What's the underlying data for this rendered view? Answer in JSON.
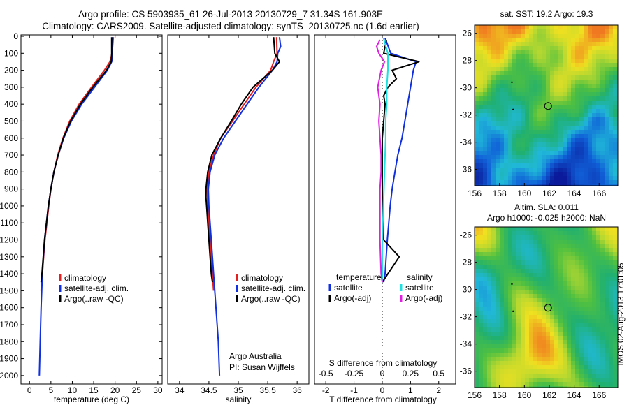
{
  "title_line1": "Argo profile: CS 5903935_61 26-Jul-2013 20130729_7 31.34S 161.903E",
  "title_line2": "Climatology: CARS2009. Satellite-adjusted climatology: synTS_20130725.nc (1.6d earlier)",
  "depth_ticks": [
    "0",
    "100",
    "200",
    "300",
    "400",
    "500",
    "600",
    "700",
    "800",
    "900",
    "1000",
    "1100",
    "1200",
    "1300",
    "1400",
    "1500",
    "1600",
    "1700",
    "1800",
    "1900",
    "2000"
  ],
  "colors": {
    "climatology": "#e32020",
    "satellite": "#1030e0",
    "argo": "#000000",
    "salinity_satellite": "#20e0e0",
    "salinity_argo": "#e020e0"
  },
  "chart_data": [
    {
      "type": "line",
      "panel": "temperature",
      "xlabel": "temperature (deg C)",
      "ylabel": "",
      "xlim": [
        -2,
        31
      ],
      "ylim": [
        2050,
        0
      ],
      "xticks": [
        "0",
        "5",
        "10",
        "15",
        "20",
        "25",
        "30"
      ],
      "legend": [
        "climatology",
        "satellite-adj. clim.",
        "Argo(..raw -QC)"
      ],
      "legend_position": "bottom-center",
      "series": [
        {
          "name": "climatology",
          "depth": [
            5,
            100,
            150,
            200,
            300,
            400,
            500,
            600,
            700,
            800,
            900,
            1000,
            1200,
            1400,
            1500
          ],
          "values": [
            19.6,
            19.3,
            18.8,
            17.5,
            14.5,
            11.6,
            9.4,
            7.8,
            6.6,
            5.7,
            5.0,
            4.5,
            3.6,
            3.0,
            2.7
          ]
        },
        {
          "name": "satellite-adj. clim.",
          "depth": [
            5,
            100,
            150,
            200,
            300,
            400,
            500,
            600,
            700,
            800,
            900,
            1000,
            1200,
            1400,
            1600,
            1800,
            2000
          ],
          "values": [
            19.4,
            19.4,
            19.2,
            18.2,
            15.2,
            12.2,
            9.8,
            8.0,
            6.7,
            5.7,
            5.0,
            4.4,
            3.5,
            3.0,
            2.7,
            2.5,
            2.3
          ]
        },
        {
          "name": "Argo(..raw -QC)",
          "depth": [
            5,
            100,
            150,
            200,
            300,
            400,
            500,
            600,
            700,
            800,
            900,
            1000,
            1200,
            1400,
            1450
          ],
          "values": [
            19.2,
            19.2,
            19.1,
            18.0,
            14.8,
            11.9,
            9.6,
            7.9,
            6.7,
            5.7,
            5.0,
            4.4,
            3.5,
            2.9,
            2.7
          ]
        }
      ]
    },
    {
      "type": "line",
      "panel": "salinity",
      "xlabel": "salinity",
      "xlim": [
        33.8,
        36.2
      ],
      "ylim": [
        2050,
        0
      ],
      "xticks": [
        "34",
        "34.5",
        "35",
        "35.5",
        "36"
      ],
      "legend": [
        "climatology",
        "satellite-adj. clim.",
        "Argo(..raw -QC)"
      ],
      "legend_position": "bottom-right",
      "annotations": [
        "Argo Australia",
        "PI: Susan Wijffels"
      ],
      "series": [
        {
          "name": "climatology",
          "depth": [
            5,
            100,
            150,
            200,
            300,
            400,
            500,
            600,
            700,
            800,
            900,
            1000,
            1200,
            1400,
            1500
          ],
          "values": [
            35.65,
            35.66,
            35.6,
            35.55,
            35.3,
            35.1,
            34.9,
            34.7,
            34.58,
            34.5,
            34.47,
            34.48,
            34.52,
            34.56,
            34.58
          ]
        },
        {
          "name": "satellite-adj. clim.",
          "depth": [
            5,
            60,
            100,
            150,
            200,
            300,
            400,
            500,
            600,
            700,
            800,
            900,
            1000,
            1200,
            1400,
            1600,
            1800,
            2000
          ],
          "values": [
            35.7,
            35.72,
            35.67,
            35.66,
            35.58,
            35.35,
            35.15,
            34.95,
            34.75,
            34.6,
            34.52,
            34.49,
            34.5,
            34.54,
            34.58,
            34.62,
            34.66,
            34.68
          ]
        },
        {
          "name": "Argo(..raw -QC)",
          "depth": [
            5,
            100,
            150,
            200,
            300,
            400,
            500,
            600,
            700,
            800,
            900,
            950,
            1000,
            1200,
            1400,
            1450
          ],
          "values": [
            35.6,
            35.62,
            35.7,
            35.58,
            35.25,
            35.05,
            34.88,
            34.7,
            34.55,
            34.48,
            34.45,
            34.45,
            34.46,
            34.5,
            34.54,
            34.56
          ]
        }
      ]
    },
    {
      "type": "line",
      "panel": "differences",
      "xlabel": "T difference from climatology",
      "xlabel_top": "S difference from climatology",
      "xlim": [
        -2.4,
        2.6
      ],
      "ylim": [
        2050,
        0
      ],
      "xticks": [
        "-2",
        "-1",
        "0",
        "1",
        "2"
      ],
      "xticks_salinity": [
        "-0.5",
        "-0.25",
        "0",
        "0.25",
        "0.5"
      ],
      "legend_titles": [
        "temperature",
        "salinity"
      ],
      "legend": [
        "satellite",
        "Argo(-adj)",
        "satellite",
        "Argo(-adj)"
      ],
      "legend_position": "bottom",
      "series": [
        {
          "name": "satellite",
          "variable": "temperature",
          "depth": [
            10,
            100,
            150,
            200,
            300,
            400,
            500,
            600,
            700,
            800,
            900,
            1000,
            1200,
            1400,
            1450
          ],
          "values": [
            0.1,
            0.3,
            1.2,
            1.1,
            1.0,
            0.9,
            0.8,
            0.7,
            0.55,
            0.45,
            0.35,
            0.28,
            0.18,
            0.1,
            0.05
          ]
        },
        {
          "name": "Argo(-adj)",
          "variable": "temperature",
          "depth": [
            20,
            60,
            100,
            150,
            200,
            250,
            300,
            350,
            400,
            500,
            600,
            700,
            800,
            900,
            1000,
            1200,
            1300,
            1350,
            1400,
            1450
          ],
          "values": [
            0.15,
            0.1,
            0.05,
            1.3,
            0.35,
            0.5,
            0.2,
            0.05,
            0.1,
            0.05,
            0.0,
            0.0,
            0.0,
            0.0,
            0.0,
            0.05,
            0.6,
            0.4,
            0.2,
            0.0
          ]
        },
        {
          "name": "satellite",
          "variable": "salinity",
          "depth": [
            10,
            100,
            200,
            300,
            400,
            500,
            600,
            800,
            1000,
            1200,
            1400,
            1450
          ],
          "values": [
            0.01,
            0.05,
            0.05,
            0.04,
            0.04,
            0.03,
            0.03,
            0.02,
            0.01,
            0.0,
            0.0,
            0.0
          ]
        },
        {
          "name": "Argo(-adj)",
          "variable": "salinity",
          "depth": [
            20,
            60,
            100,
            150,
            200,
            300,
            400,
            500,
            600,
            700,
            800,
            900,
            1000,
            1200,
            1400,
            1450
          ],
          "values": [
            -0.02,
            -0.05,
            -0.03,
            0.02,
            -0.01,
            -0.04,
            -0.02,
            -0.03,
            -0.02,
            -0.01,
            -0.01,
            -0.02,
            -0.02,
            -0.02,
            -0.01,
            0.0
          ]
        }
      ]
    },
    {
      "type": "heatmap",
      "panel": "sst_map",
      "title": "sat. SST: 19.2 Argo: 19.3",
      "xticks": [
        "156",
        "158",
        "160",
        "162",
        "164",
        "166"
      ],
      "yticks": [
        "-26",
        "-28",
        "-30",
        "-32",
        "-34",
        "-36"
      ],
      "xlim": [
        156,
        167.5
      ],
      "ylim": [
        -37.2,
        -25.4
      ],
      "marker": {
        "lon": 161.903,
        "lat": -31.34
      }
    },
    {
      "type": "heatmap",
      "panel": "sla_map",
      "title": "Altim. SLA: 0.011",
      "subtitle": "Argo h1000: -0.025 h2000: NaN",
      "xticks": [
        "156",
        "158",
        "160",
        "162",
        "164",
        "166"
      ],
      "yticks": [
        "-26",
        "-28",
        "-30",
        "-32",
        "-34",
        "-36"
      ],
      "xlim": [
        156,
        167.5
      ],
      "ylim": [
        -37.2,
        -25.4
      ],
      "marker": {
        "lon": 161.903,
        "lat": -31.34
      }
    }
  ],
  "side_stamp": "IMOS 02-Aug-2013 17:01:05"
}
